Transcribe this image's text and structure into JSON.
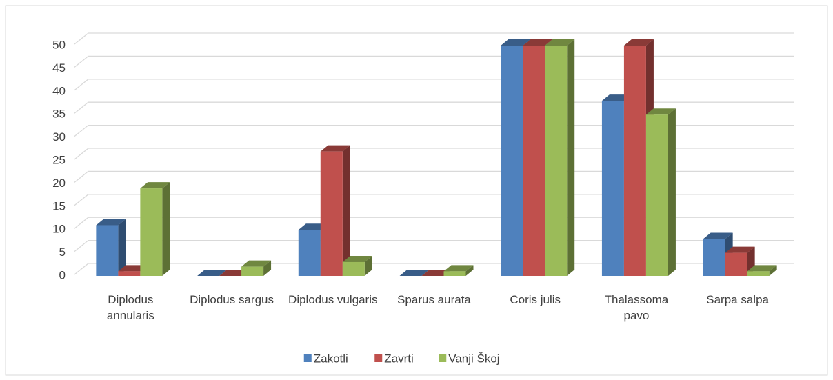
{
  "chart_data": {
    "type": "bar3d",
    "categories": [
      "Diplodus annularis",
      "Diplodus sargus",
      "Diplodus vulgaris",
      "Sparus aurata",
      "Coris julis",
      "Thalassoma pavo",
      "Sarpa salpa"
    ],
    "series": [
      {
        "name": "Zakotli",
        "color": "#4f81bd",
        "values": [
          11,
          0,
          10,
          0,
          50,
          38,
          8
        ]
      },
      {
        "name": "Zavrti",
        "color": "#c0504d",
        "values": [
          1,
          0,
          27,
          0,
          50,
          50,
          5
        ]
      },
      {
        "name": "Vanji Škoj",
        "color": "#9bbb59",
        "values": [
          19,
          2,
          3,
          1,
          50,
          35,
          1
        ]
      }
    ],
    "ylim": [
      0,
      50
    ],
    "yticks": [
      0,
      5,
      10,
      15,
      20,
      25,
      30,
      35,
      40,
      45,
      50
    ],
    "grid": true,
    "legend": "bottom"
  }
}
